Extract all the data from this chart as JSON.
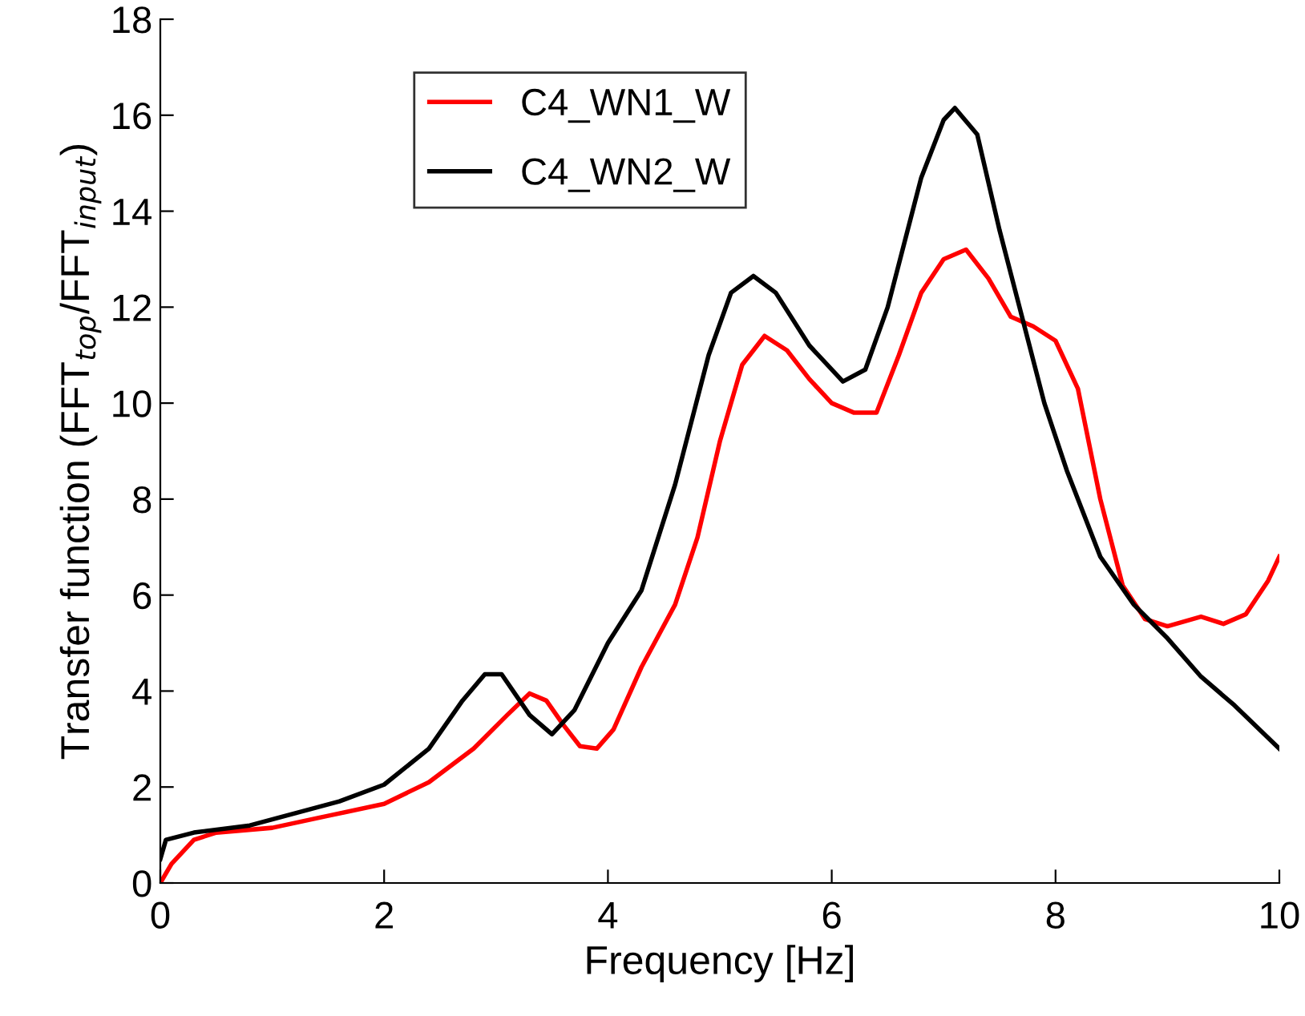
{
  "chart_data": {
    "type": "line",
    "xlabel": "Frequency [Hz]",
    "ylabel": "Transfer function (FFT$_{top}$/FFT$_{input}$)",
    "xlim": [
      0,
      10
    ],
    "xticks": [
      0,
      2,
      4,
      6,
      8,
      10
    ],
    "ylim": [
      0,
      18
    ],
    "yticks": [
      0,
      2,
      4,
      6,
      8,
      10,
      12,
      14,
      16,
      18
    ],
    "grid": false,
    "legend": "top left",
    "marker": "none",
    "line_style": "solid",
    "series": [
      {
        "name": "C4_WN1_W",
        "color": "#ff0000",
        "x": [
          0,
          0.1,
          0.3,
          0.5,
          1.0,
          1.5,
          2.0,
          2.4,
          2.8,
          3.1,
          3.3,
          3.45,
          3.6,
          3.75,
          3.9,
          4.05,
          4.3,
          4.6,
          4.8,
          5.0,
          5.2,
          5.4,
          5.6,
          5.8,
          6.0,
          6.2,
          6.4,
          6.6,
          6.8,
          7.0,
          7.2,
          7.4,
          7.6,
          7.8,
          8.0,
          8.2,
          8.4,
          8.6,
          8.8,
          9.0,
          9.3,
          9.5,
          9.7,
          9.9,
          10
        ],
        "values": [
          0,
          0.4,
          0.9,
          1.05,
          1.15,
          1.4,
          1.65,
          2.1,
          2.8,
          3.5,
          3.95,
          3.8,
          3.3,
          2.85,
          2.8,
          3.2,
          4.5,
          5.8,
          7.2,
          9.2,
          10.8,
          11.4,
          11.1,
          10.5,
          10.0,
          9.8,
          9.8,
          11.0,
          12.3,
          13.0,
          13.2,
          12.6,
          11.8,
          11.6,
          11.3,
          10.3,
          8.0,
          6.2,
          5.5,
          5.35,
          5.55,
          5.4,
          5.6,
          6.3,
          6.8
        ]
      },
      {
        "name": "C4_WN2_W",
        "color": "#000000",
        "x": [
          0,
          0.05,
          0.3,
          0.8,
          1.2,
          1.6,
          2.0,
          2.4,
          2.7,
          2.9,
          3.05,
          3.3,
          3.5,
          3.7,
          4.0,
          4.3,
          4.6,
          4.9,
          5.1,
          5.3,
          5.5,
          5.8,
          6.1,
          6.3,
          6.5,
          6.8,
          7.0,
          7.1,
          7.3,
          7.5,
          7.7,
          7.9,
          8.1,
          8.4,
          8.7,
          9.0,
          9.3,
          9.6,
          10
        ],
        "values": [
          0.5,
          0.9,
          1.05,
          1.2,
          1.45,
          1.7,
          2.05,
          2.8,
          3.8,
          4.35,
          4.35,
          3.5,
          3.1,
          3.6,
          5.0,
          6.1,
          8.3,
          11.0,
          12.3,
          12.65,
          12.3,
          11.2,
          10.45,
          10.7,
          12.0,
          14.7,
          15.9,
          16.15,
          15.6,
          13.6,
          11.8,
          10.0,
          8.6,
          6.8,
          5.8,
          5.1,
          4.3,
          3.7,
          2.8
        ]
      }
    ]
  }
}
